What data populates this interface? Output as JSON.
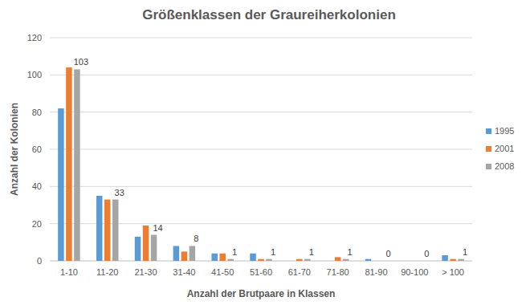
{
  "chart_data": {
    "type": "bar",
    "title": "Größenklassen der Graureiherkolonien",
    "x_label": "Anzahl der Brutpaare in Klassen",
    "y_label": "Anzahl der Kolonien",
    "categories": [
      "1-10",
      "11-20",
      "21-30",
      "31-40",
      "41-50",
      "51-60",
      "61-70",
      "71-80",
      "81-90",
      "90-100",
      "> 100"
    ],
    "series": [
      {
        "name": "1995",
        "color": "#5b9bd5",
        "values": [
          82,
          35,
          13,
          8,
          4,
          4,
          0,
          0,
          1,
          0,
          3
        ]
      },
      {
        "name": "2001",
        "color": "#ed7d31",
        "values": [
          104,
          33,
          19,
          5,
          4,
          1,
          1,
          2,
          0,
          0,
          1
        ]
      },
      {
        "name": "2008",
        "color": "#a5a5a5",
        "values": [
          103,
          33,
          14,
          8,
          1,
          1,
          1,
          1,
          0,
          0,
          1
        ],
        "data_labels": true
      }
    ],
    "ylim": [
      0,
      120
    ],
    "yticks": [
      0,
      20,
      40,
      60,
      80,
      100,
      120
    ],
    "grid": true,
    "legend": "right"
  }
}
